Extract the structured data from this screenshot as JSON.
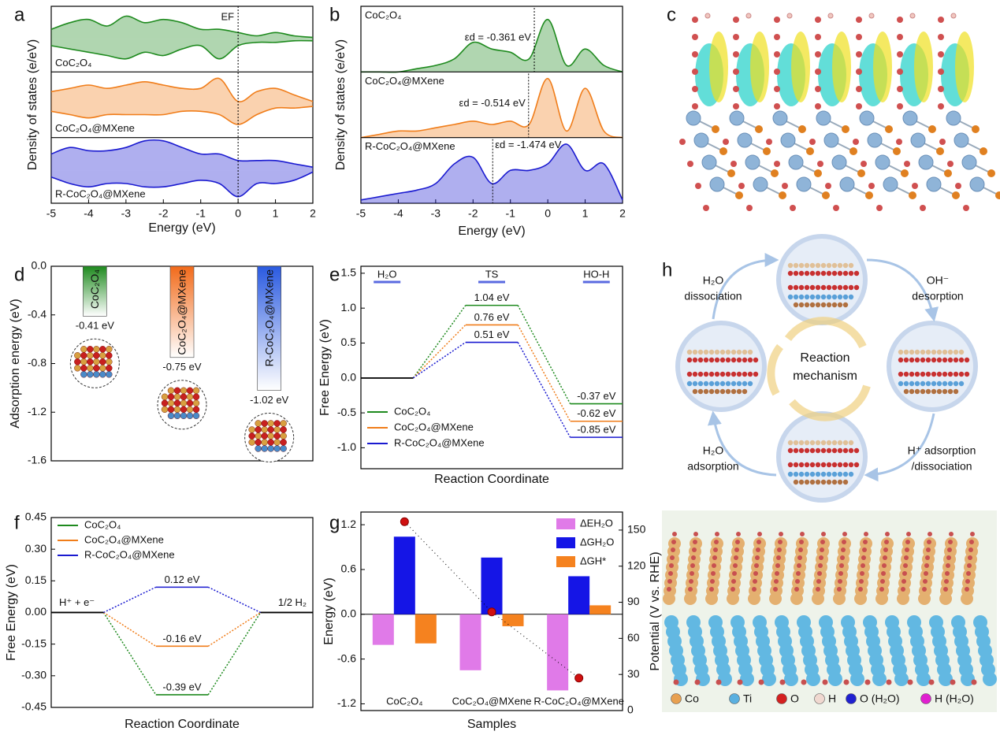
{
  "chart_data": [
    {
      "type": "area",
      "label": "a",
      "xlabel": "Energy (eV)",
      "ylabel": "Density of states (e/eV)",
      "x": [
        -5,
        -4.5,
        -4,
        -3.5,
        -3,
        -2.5,
        -2,
        -1.5,
        -1,
        -0.5,
        0,
        0.5,
        1,
        1.5,
        2
      ],
      "xlim": [
        -5,
        2
      ],
      "xticks": [
        -5,
        -4,
        -3,
        -2,
        -1,
        0,
        1,
        2
      ],
      "ylim": [
        -1,
        1
      ],
      "annotations": [
        {
          "value": 0,
          "label": "EF"
        }
      ],
      "series": [
        {
          "name": "CoC₂O₄",
          "color": "#1e8a1e",
          "values": [
            0.3,
            0.5,
            0.6,
            0.4,
            0.7,
            0.5,
            0.6,
            0.5,
            0.3,
            0.3,
            0.2,
            0.1,
            0.2,
            0.1,
            0.05
          ],
          "values_down": [
            -0.2,
            -0.3,
            -0.4,
            -0.5,
            -0.6,
            -0.4,
            -0.5,
            -0.3,
            -0.2,
            -0.6,
            -0.2,
            -0.1,
            -0.1,
            -0.05,
            -0.05
          ]
        },
        {
          "name": "CoC₂O₄@MXene",
          "color": "#f07d1a",
          "values": [
            0.4,
            0.5,
            0.6,
            0.5,
            0.6,
            0.7,
            0.6,
            0.5,
            0.5,
            0.8,
            0.1,
            0.4,
            0.5,
            0.3,
            0.1
          ],
          "values_down": [
            -0.2,
            -0.3,
            -0.4,
            -0.3,
            -0.3,
            -0.3,
            -0.3,
            -0.2,
            -0.2,
            -0.3,
            -0.6,
            -0.3,
            -0.1,
            -0.1,
            -0.05
          ]
        },
        {
          "name": "R-CoC₂O₄@MXene",
          "color": "#1a1ad0",
          "values": [
            0.5,
            0.7,
            0.6,
            0.6,
            0.7,
            0.9,
            0.9,
            0.7,
            0.5,
            0.5,
            0.3,
            0.3,
            0.3,
            0.2,
            0.1
          ],
          "values_down": [
            -0.2,
            -0.4,
            -0.5,
            -0.4,
            -0.4,
            -0.5,
            -0.5,
            -0.4,
            -0.3,
            -0.4,
            -0.8,
            -0.4,
            -0.4,
            -0.3,
            -0.05
          ]
        }
      ]
    },
    {
      "type": "area",
      "label": "b",
      "xlabel": "Energy (eV)",
      "ylabel": "Density of states (e/eV)",
      "x": [
        -5,
        -4.5,
        -4,
        -3.5,
        -3,
        -2.5,
        -2,
        -1.5,
        -1,
        -0.5,
        0,
        0.5,
        1,
        1.5,
        2
      ],
      "xlim": [
        -5,
        2
      ],
      "xticks": [
        -5,
        -4,
        -3,
        -2,
        -1,
        0,
        1,
        2
      ],
      "ylim": [
        0,
        1
      ],
      "series": [
        {
          "name": "CoC₂O₄",
          "color": "#1e8a1e",
          "values": [
            0,
            0,
            0,
            0.05,
            0.1,
            0.2,
            0.45,
            0.35,
            0.3,
            0.2,
            0.8,
            0.1,
            0.35,
            0.1,
            0
          ],
          "d_band_center": {
            "value": -0.361,
            "label": "εd = -0.361 eV"
          }
        },
        {
          "name": "CoC₂O₄@MXene",
          "color": "#f07d1a",
          "values": [
            0,
            0.05,
            0.1,
            0.1,
            0.15,
            0.2,
            0.25,
            0.2,
            0.25,
            0.2,
            0.9,
            0.1,
            0.75,
            0.1,
            0
          ],
          "d_band_center": {
            "value": -0.514,
            "label": "εd = -0.514 eV"
          }
        },
        {
          "name": "R-CoC₂O₄@MXene",
          "color": "#1a1ad0",
          "values": [
            0.05,
            0.1,
            0.15,
            0.2,
            0.3,
            0.6,
            0.7,
            0.3,
            0.5,
            0.5,
            0.6,
            0.9,
            0.5,
            0.6,
            0.05
          ],
          "d_band_center": {
            "value": -1.474,
            "label": "εd = -1.474 eV"
          }
        }
      ]
    },
    {
      "type": "bar",
      "label": "d",
      "ylabel": "Adsorption energy (eV)",
      "categories": [
        "CoC₂O₄",
        "CoC₂O₄@MXene",
        "R-CoC₂O₄@MXene"
      ],
      "values": [
        -0.41,
        -0.75,
        -1.02
      ],
      "value_labels": [
        "-0.41 eV",
        "-0.75 eV",
        "-1.02 eV"
      ],
      "colors": [
        "#1e8a1e",
        "#f26a1a",
        "#2a5ae0"
      ],
      "ylim": [
        -1.6,
        0
      ],
      "yticks": [
        {
          "value": 0,
          "label": "0.0"
        },
        -0.4,
        -0.8,
        -1.2,
        -1.6
      ]
    },
    {
      "type": "step",
      "label": "e",
      "xlabel": "Reaction Coordinate",
      "ylabel": "Free Energy (eV)",
      "categories": [
        "H₂O",
        "TS",
        "HO-H"
      ],
      "series": [
        {
          "name": "CoC₂O₄",
          "color": "#1e8a1e",
          "values": [
            0,
            1.04,
            -0.37
          ],
          "value_labels": [
            null,
            "1.04 eV",
            "-0.37 eV"
          ]
        },
        {
          "name": "CoC₂O₄@MXene",
          "color": "#f07d1a",
          "values": [
            0,
            0.76,
            -0.62
          ],
          "value_labels": [
            null,
            "0.76 eV",
            "-0.62 eV"
          ]
        },
        {
          "name": "R-CoC₂O₄@MXene",
          "color": "#1a1ad0",
          "values": [
            0,
            0.51,
            -0.85
          ],
          "value_labels": [
            null,
            "0.51 eV",
            "-0.85 eV"
          ]
        }
      ],
      "ylim": [
        -1.3,
        1.6
      ],
      "yticks": [
        1.5,
        {
          "value": 1,
          "label": "1.0"
        },
        0.5,
        {
          "value": 0,
          "label": "0.0"
        },
        -0.5,
        {
          "value": -1,
          "label": "-1.0"
        }
      ]
    },
    {
      "type": "step",
      "label": "f",
      "xlabel": "Reaction Coordinate",
      "ylabel": "Free Energy (eV)",
      "categories": [
        "H⁺ + e⁻",
        null,
        "1/2 H₂"
      ],
      "series": [
        {
          "name": "CoC₂O₄",
          "color": "#1e8a1e",
          "values": [
            0,
            -0.39,
            0
          ],
          "value_labels": [
            null,
            "-0.39 eV",
            null
          ]
        },
        {
          "name": "CoC₂O₄@MXene",
          "color": "#f07d1a",
          "values": [
            0,
            -0.16,
            0
          ],
          "value_labels": [
            null,
            "-0.16 eV",
            null
          ]
        },
        {
          "name": "R-CoC₂O₄@MXene",
          "color": "#1a1ad0",
          "values": [
            0,
            0.12,
            0
          ],
          "value_labels": [
            null,
            "0.12 eV",
            null
          ]
        }
      ],
      "ylim": [
        -0.45,
        0.45
      ],
      "yticks": [
        0.45,
        {
          "value": 0.3,
          "label": "0.30"
        },
        0.15,
        {
          "value": 0,
          "label": "0.00"
        },
        -0.15,
        {
          "value": -0.3,
          "label": "-0.30"
        },
        -0.45
      ]
    },
    {
      "type": "bar",
      "label": "g",
      "xlabel": "Samples",
      "ylabel": "Energy (eV)",
      "y2label": "Potential (V vs. RHE)",
      "categories": [
        "CoC₂O₄",
        "CoC₂O₄@MXene",
        "R-CoC₂O₄@MXene"
      ],
      "series": [
        {
          "name": "ΔEH₂O",
          "color": "#e07ae8",
          "values": [
            -0.41,
            -0.75,
            -1.02
          ]
        },
        {
          "name": "ΔGH₂O",
          "color": "#1515e6",
          "values": [
            1.04,
            0.76,
            0.51
          ]
        },
        {
          "name": "ΔGH*",
          "color": "#f5821f",
          "values": [
            -0.39,
            -0.16,
            0.12
          ]
        },
        {
          "type": "scatter",
          "axis": "y2",
          "color": "#d01010",
          "values": [
            157,
            82,
            27
          ]
        }
      ],
      "ylim": [
        -1.29,
        1.37
      ],
      "yticks": [
        1.2,
        0.6,
        {
          "value": 0,
          "label": "0.0"
        },
        -0.6,
        -1.2
      ],
      "y2lim": [
        0,
        165
      ],
      "y2ticks": [
        0,
        30,
        60,
        90,
        120,
        150
      ]
    }
  ],
  "figure_c": {
    "label": "c"
  },
  "figure_h": {
    "label": "h",
    "center": [
      "Reaction",
      "mechanism"
    ],
    "steps": [
      [
        "H₂O",
        "dissociation"
      ],
      [
        "OH⁻",
        "desorption"
      ],
      [
        "H⁺ adsorption",
        "/dissociation"
      ],
      [
        "H₂O",
        "adsorption"
      ]
    ],
    "legend": [
      {
        "name": "Co",
        "color": "#e8a050"
      },
      {
        "name": "Ti",
        "color": "#5ab0e0"
      },
      {
        "name": "O",
        "color": "#d42020"
      },
      {
        "name": "H",
        "color": "#f0d8d0"
      },
      {
        "name": "O (H₂O)",
        "color": "#2020d0"
      },
      {
        "name": "H (H₂O)",
        "color": "#e020d0"
      }
    ]
  }
}
